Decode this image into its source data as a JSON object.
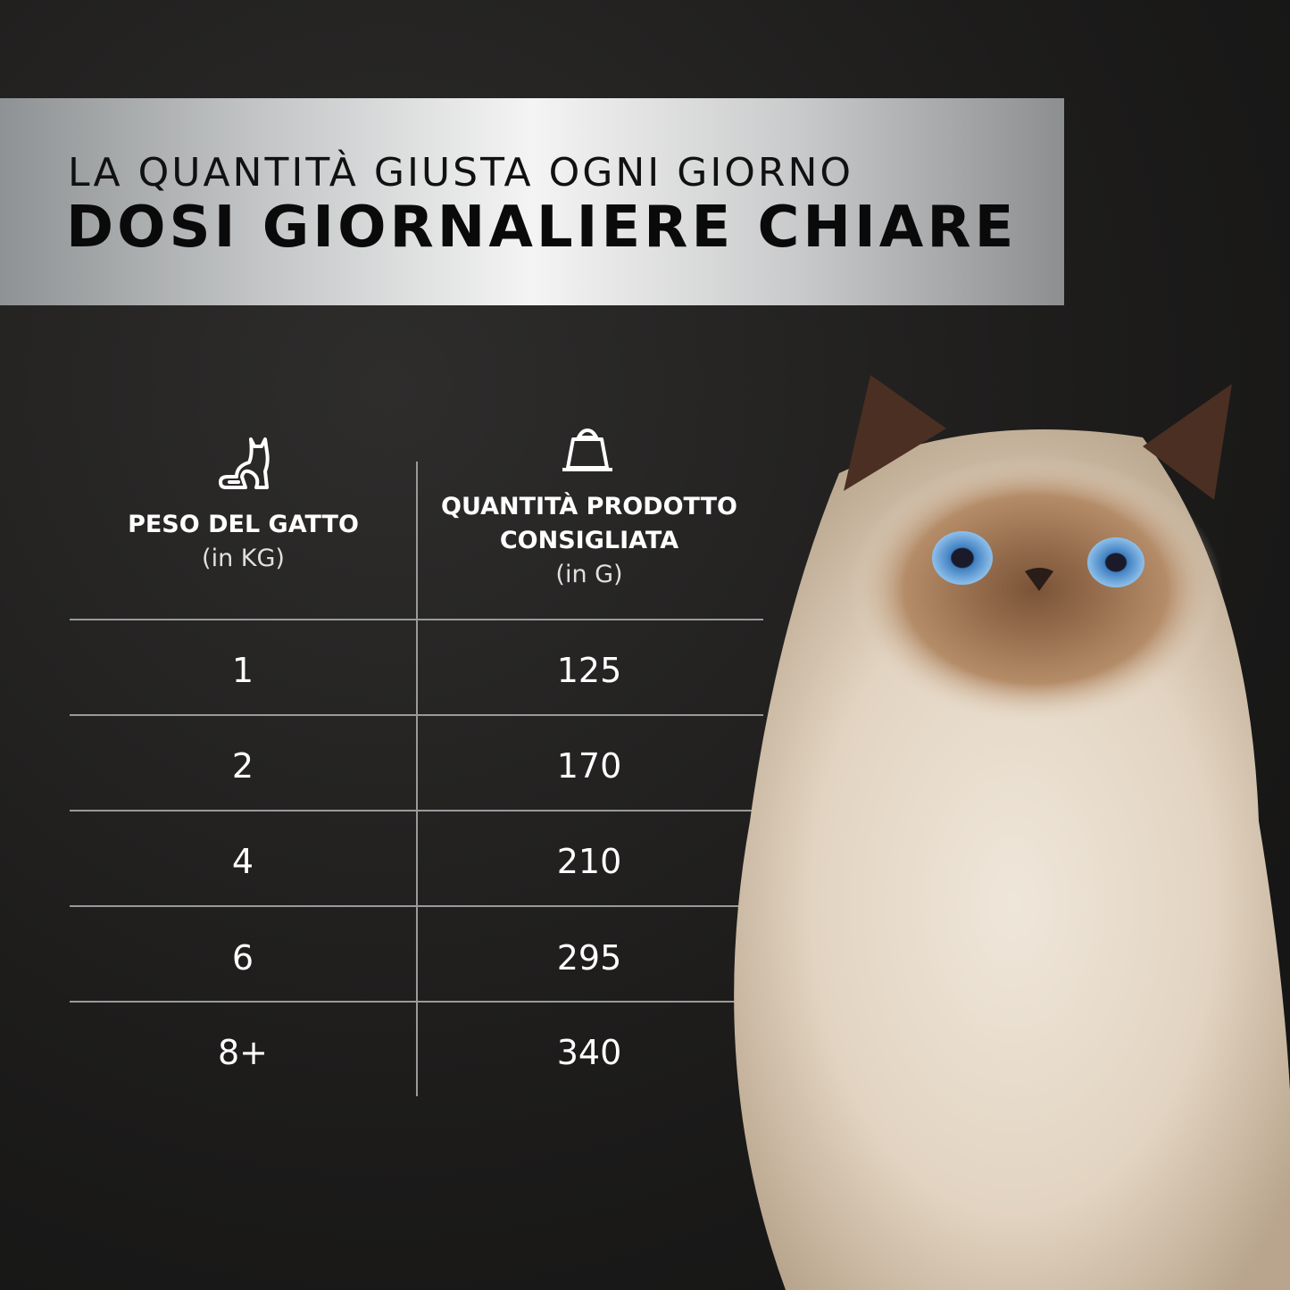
{
  "banner": {
    "subtitle": "LA QUANTITÀ GIUSTA OGNI GIORNO",
    "title": "DOSI GIORNALIERE CHIARE"
  },
  "table": {
    "headers": [
      {
        "label": "PESO DEL GATTO",
        "unit": "(in KG)",
        "icon": "cat-icon"
      },
      {
        "label_line1": "QUANTITÀ PRODOTTO",
        "label_line2": "CONSIGLIATA",
        "unit": "(in G)",
        "icon": "food-bag-icon"
      }
    ],
    "rows": [
      {
        "weight": "1",
        "amount": "125"
      },
      {
        "weight": "2",
        "amount": "170"
      },
      {
        "weight": "4",
        "amount": "210"
      },
      {
        "weight": "6",
        "amount": "295"
      },
      {
        "weight": "8+",
        "amount": "340"
      }
    ]
  },
  "colors": {
    "background": "#1d1c1b",
    "banner": "#f4f4f4",
    "text": "#ffffff"
  }
}
